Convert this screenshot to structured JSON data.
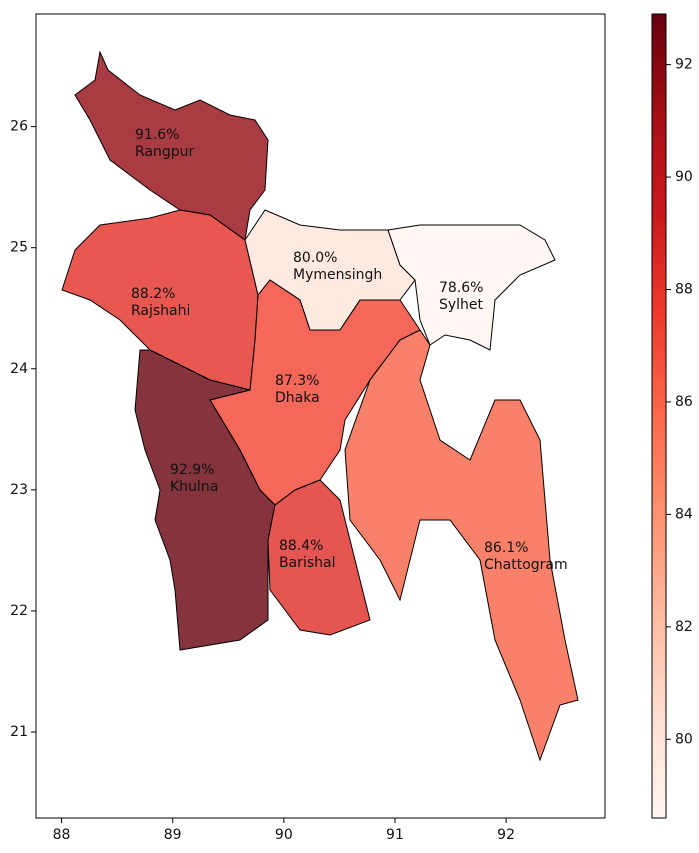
{
  "chart_data": {
    "type": "choropleth",
    "colormap": "Reds",
    "categories": [
      "Rangpur",
      "Rajshahi",
      "Mymensingh",
      "Sylhet",
      "Dhaka",
      "Khulna",
      "Barishal",
      "Chattogram"
    ],
    "values": [
      91.6,
      88.2,
      80.0,
      78.6,
      87.3,
      92.9,
      88.4,
      86.1
    ],
    "value_labels": [
      "91.6%",
      "88.2%",
      "80.0%",
      "78.6%",
      "87.3%",
      "92.9%",
      "88.4%",
      "86.1%"
    ],
    "xlim": [
      87.77,
      92.89
    ],
    "xticks": [
      88,
      89,
      90,
      91,
      92
    ],
    "ylim": [
      20.29,
      26.93
    ],
    "yticks": [
      21,
      22,
      23,
      24,
      25,
      26
    ],
    "clim": [
      78.6,
      92.9
    ],
    "cticks": [
      80,
      82,
      84,
      86,
      88,
      90,
      92
    ]
  }
}
